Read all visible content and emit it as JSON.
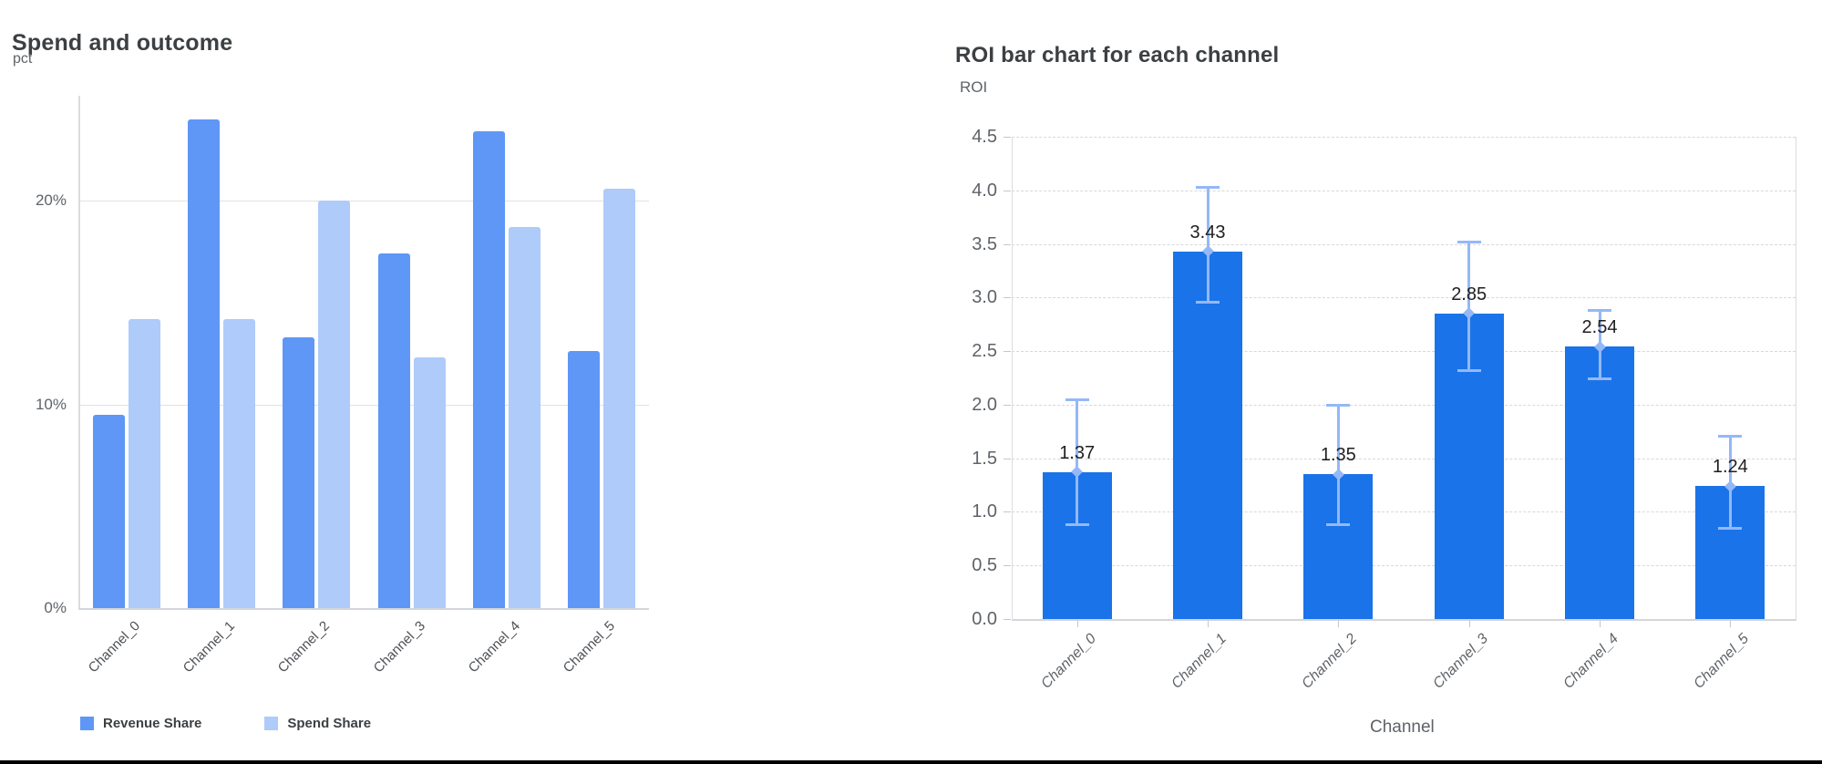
{
  "page": {
    "background": "#ffffff",
    "bottom_rule_color": "#000000"
  },
  "left_chart": {
    "title": "Spend and outcome",
    "y_axis_name": "pct",
    "y_tick_labels": [
      "0%",
      "10%",
      "20%"
    ],
    "legend": [
      {
        "label": "Revenue Share",
        "color": "#5E97F6"
      },
      {
        "label": "Spend Share",
        "color": "#AECBFA"
      }
    ]
  },
  "right_chart": {
    "title": "ROI bar chart for each channel",
    "y_axis_name": "ROI",
    "x_axis_name": "Channel",
    "y_tick_labels": [
      "0.0",
      "0.5",
      "1.0",
      "1.5",
      "2.0",
      "2.5",
      "3.0",
      "3.5",
      "4.0",
      "4.5"
    ]
  },
  "chart_data": [
    {
      "type": "bar",
      "title": "Spend and outcome",
      "ylabel": "pct",
      "categories": [
        "Channel_0",
        "Channel_1",
        "Channel_2",
        "Channel_3",
        "Channel_4",
        "Channel_5"
      ],
      "series": [
        {
          "name": "Revenue Share",
          "color": "#5E97F6",
          "values": [
            9.5,
            24.0,
            13.3,
            17.4,
            23.4,
            12.6
          ]
        },
        {
          "name": "Spend Share",
          "color": "#AECBFA",
          "values": [
            14.2,
            14.2,
            20.0,
            12.3,
            18.7,
            20.6
          ]
        }
      ],
      "unit": "%",
      "ylim": [
        0,
        25.3
      ],
      "y_ticks": [
        0,
        10,
        20
      ],
      "grid": "solid",
      "legend_position": "bottom"
    },
    {
      "type": "bar",
      "title": "ROI bar chart for each channel",
      "xlabel": "Channel",
      "ylabel": "ROI",
      "categories": [
        "Channel_0",
        "Channel_1",
        "Channel_2",
        "Channel_3",
        "Channel_4",
        "Channel_5"
      ],
      "values": [
        1.37,
        3.43,
        1.35,
        2.85,
        2.54,
        1.24
      ],
      "value_labels": [
        "1.37",
        "3.43",
        "1.35",
        "2.85",
        "2.54",
        "1.24"
      ],
      "error_low": [
        0.88,
        2.95,
        0.88,
        2.31,
        2.24,
        0.84
      ],
      "error_high": [
        2.05,
        4.03,
        2.0,
        3.52,
        2.88,
        1.71
      ],
      "bar_color": "#1A73E8",
      "error_color": "#94B8F8",
      "ylim": [
        0,
        4.5
      ],
      "y_tick_step": 0.5,
      "grid": "dashed",
      "legend_position": "none"
    }
  ]
}
